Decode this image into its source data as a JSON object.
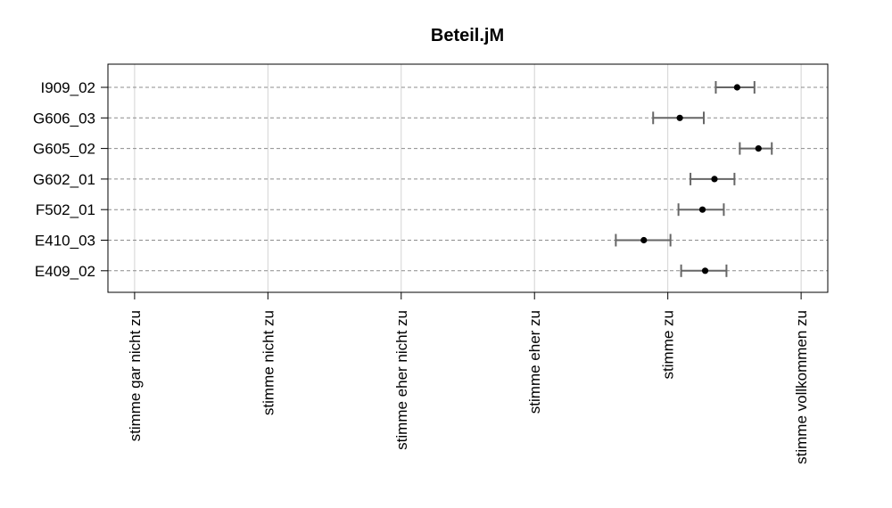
{
  "chart_data": {
    "type": "scatter",
    "title": "Beteil.jM",
    "xlabel": "",
    "ylabel": "",
    "x_categories": [
      "stimme gar nicht zu",
      "stimme nicht zu",
      "stimme eher nicht zu",
      "stimme eher zu",
      "stimme zu",
      "stimme vollkommen zu"
    ],
    "xlim": [
      0.8,
      6.2
    ],
    "grid": true,
    "series": [
      {
        "values": [
          {
            "item": "I909_02",
            "mean": 5.52,
            "low": 5.36,
            "high": 5.65
          },
          {
            "item": "G606_03",
            "mean": 5.09,
            "low": 4.89,
            "high": 5.27
          },
          {
            "item": "G605_02",
            "mean": 5.68,
            "low": 5.54,
            "high": 5.78
          },
          {
            "item": "G602_01",
            "mean": 5.35,
            "low": 5.17,
            "high": 5.5
          },
          {
            "item": "F502_01",
            "mean": 5.26,
            "low": 5.08,
            "high": 5.42
          },
          {
            "item": "E410_03",
            "mean": 4.82,
            "low": 4.61,
            "high": 5.02
          },
          {
            "item": "E409_02",
            "mean": 5.28,
            "low": 5.1,
            "high": 5.44
          }
        ]
      }
    ]
  }
}
